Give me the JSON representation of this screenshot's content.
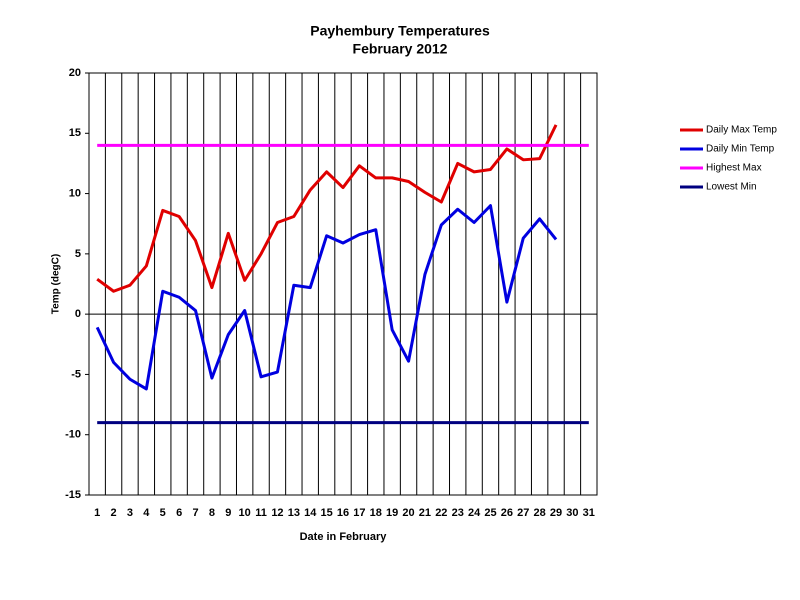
{
  "chart_data": {
    "type": "line",
    "title": "Payhembury Temperatures",
    "subtitle": "February 2012",
    "x_label": "Date in February",
    "y_label": "Temp (degC)",
    "categories": [
      1,
      2,
      3,
      4,
      5,
      6,
      7,
      8,
      9,
      10,
      11,
      12,
      13,
      14,
      15,
      16,
      17,
      18,
      19,
      20,
      21,
      22,
      23,
      24,
      25,
      26,
      27,
      28,
      29,
      30,
      31
    ],
    "series": [
      {
        "name": "Daily Max Temp",
        "color": "#e00000",
        "values": [
          2.9,
          1.9,
          2.4,
          4.0,
          8.6,
          8.1,
          6.1,
          2.2,
          6.7,
          2.8,
          5.0,
          7.6,
          8.1,
          10.3,
          11.8,
          10.5,
          12.3,
          11.3,
          11.3,
          11.0,
          10.1,
          9.3,
          12.5,
          11.8,
          12.0,
          13.7,
          12.8,
          12.9,
          15.7,
          null,
          null
        ]
      },
      {
        "name": "Daily Min Temp",
        "color": "#0000e0",
        "values": [
          -1.1,
          -4.0,
          -5.4,
          -6.2,
          1.9,
          1.4,
          0.3,
          -5.3,
          -1.7,
          0.3,
          -5.2,
          -4.8,
          2.4,
          2.2,
          6.5,
          5.9,
          6.6,
          7.0,
          -1.3,
          -3.9,
          3.3,
          7.4,
          8.7,
          7.6,
          9.0,
          1.0,
          6.3,
          7.9,
          6.2,
          null,
          null
        ]
      },
      {
        "name": "Highest Max",
        "color": "#ff00ff",
        "values": [
          14,
          14,
          14,
          14,
          14,
          14,
          14,
          14,
          14,
          14,
          14,
          14,
          14,
          14,
          14,
          14,
          14,
          14,
          14,
          14,
          14,
          14,
          14,
          14,
          14,
          14,
          14,
          14,
          14,
          14,
          14
        ]
      },
      {
        "name": "Lowest Min",
        "color": "#000080",
        "values": [
          -9,
          -9,
          -9,
          -9,
          -9,
          -9,
          -9,
          -9,
          -9,
          -9,
          -9,
          -9,
          -9,
          -9,
          -9,
          -9,
          -9,
          -9,
          -9,
          -9,
          -9,
          -9,
          -9,
          -9,
          -9,
          -9,
          -9,
          -9,
          -9,
          -9,
          -9
        ]
      }
    ],
    "ylim": [
      -15,
      20
    ],
    "yticks": [
      -15,
      -10,
      -5,
      0,
      5,
      10,
      15,
      20
    ],
    "vertical_grid": true,
    "legend": "right"
  }
}
